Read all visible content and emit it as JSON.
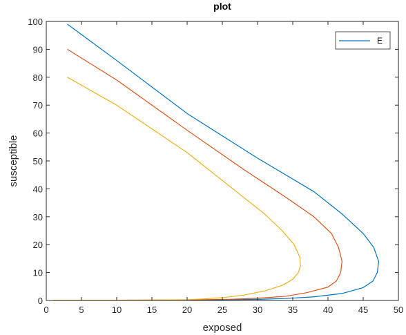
{
  "chart_data": {
    "type": "line",
    "title": "plot",
    "xlabel": "exposed",
    "ylabel": "susceptible",
    "xlim": [
      0,
      50
    ],
    "ylim": [
      0,
      100
    ],
    "xticks": [
      0,
      5,
      10,
      15,
      20,
      25,
      30,
      35,
      40,
      45,
      50
    ],
    "yticks": [
      0,
      10,
      20,
      30,
      40,
      50,
      60,
      70,
      80,
      90,
      100
    ],
    "grid": false,
    "legend": {
      "position": "top-right",
      "entries": [
        "E"
      ]
    },
    "series": [
      {
        "name": "E",
        "color": "#0072BD",
        "x": [
          3,
          10,
          20,
          30,
          38,
          42,
          45,
          46.5,
          47.2,
          47,
          46.4,
          45,
          42,
          38,
          34,
          30,
          26,
          22,
          20,
          15,
          10,
          5,
          1
        ],
        "y": [
          99,
          86,
          67,
          51,
          39,
          31,
          24,
          19,
          14,
          10,
          7,
          4.6,
          2.5,
          1.3,
          0.7,
          0.4,
          0.3,
          0.2,
          0.15,
          0.1,
          0.1,
          0.1,
          0.1
        ]
      },
      {
        "color": "#D95319",
        "x": [
          3,
          10,
          20,
          28,
          34,
          38,
          40.5,
          41.5,
          42,
          41.8,
          41.2,
          40,
          37,
          34,
          30,
          26,
          22,
          20,
          15,
          10,
          5,
          1
        ],
        "y": [
          90,
          79,
          61,
          47,
          37,
          30,
          24,
          19,
          14,
          10,
          7,
          4.8,
          2.8,
          1.5,
          0.8,
          0.4,
          0.3,
          0.2,
          0.15,
          0.1,
          0.1,
          0.1
        ]
      },
      {
        "color": "#EDB120",
        "x": [
          3,
          10,
          20,
          27,
          31,
          33.5,
          35.2,
          36,
          36.1,
          35.8,
          35,
          33.5,
          31,
          28,
          25,
          22,
          20,
          15,
          10,
          5,
          1
        ],
        "y": [
          80,
          70,
          53,
          39,
          31,
          25,
          20,
          15.5,
          12.5,
          10,
          7.6,
          5.4,
          3.4,
          1.9,
          1.0,
          0.5,
          0.3,
          0.15,
          0.1,
          0.1,
          0.1
        ]
      }
    ]
  }
}
